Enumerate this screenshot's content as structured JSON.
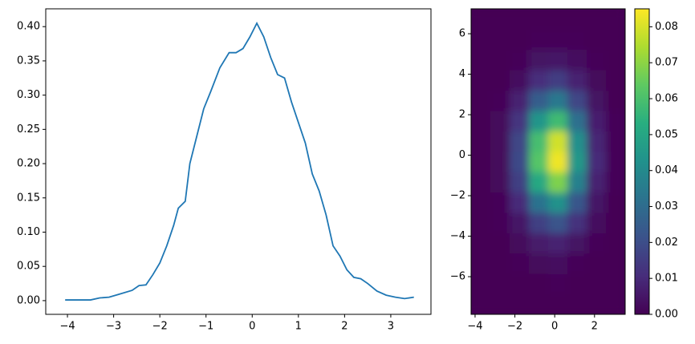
{
  "chart_data": [
    {
      "type": "line",
      "color": "#1f77b4",
      "x": [
        -4.05,
        -3.5,
        -3.3,
        -3.1,
        -2.9,
        -2.6,
        -2.45,
        -2.3,
        -2.15,
        -2.0,
        -1.85,
        -1.7,
        -1.6,
        -1.45,
        -1.35,
        -1.2,
        -1.05,
        -0.9,
        -0.7,
        -0.5,
        -0.35,
        -0.2,
        -0.05,
        0.1,
        0.25,
        0.4,
        0.55,
        0.7,
        0.85,
        1.0,
        1.15,
        1.3,
        1.45,
        1.6,
        1.75,
        1.9,
        2.05,
        2.2,
        2.35,
        2.5,
        2.7,
        2.9,
        3.1,
        3.3,
        3.5
      ],
      "values": [
        0.001,
        0.001,
        0.004,
        0.005,
        0.009,
        0.015,
        0.022,
        0.023,
        0.038,
        0.055,
        0.08,
        0.11,
        0.135,
        0.145,
        0.2,
        0.24,
        0.28,
        0.305,
        0.34,
        0.362,
        0.362,
        0.368,
        0.385,
        0.405,
        0.385,
        0.355,
        0.33,
        0.325,
        0.29,
        0.26,
        0.23,
        0.185,
        0.16,
        0.125,
        0.08,
        0.065,
        0.045,
        0.034,
        0.032,
        0.025,
        0.014,
        0.008,
        0.005,
        0.003,
        0.005
      ],
      "xlim": [
        -4.47,
        3.87
      ],
      "ylim": [
        -0.02,
        0.426
      ],
      "xticks": [
        {
          "value": -4,
          "label": "−4"
        },
        {
          "value": -3,
          "label": "−3"
        },
        {
          "value": -2,
          "label": "−2"
        },
        {
          "value": -1,
          "label": "−1"
        },
        0,
        1,
        2,
        3
      ],
      "yticks": [
        {
          "value": 0,
          "label": "0.00"
        },
        {
          "value": 0.05,
          "label": "0.05"
        },
        {
          "value": 0.1,
          "label": "0.10"
        },
        {
          "value": 0.15,
          "label": "0.15"
        },
        {
          "value": 0.2,
          "label": "0.20"
        },
        {
          "value": 0.25,
          "label": "0.25"
        },
        {
          "value": 0.3,
          "label": "0.30"
        },
        {
          "value": 0.35,
          "label": "0.35"
        },
        {
          "value": 0.4,
          "label": "0.40"
        }
      ]
    },
    {
      "type": "heatmap",
      "colormap": "viridis",
      "xlim": [
        -4.2,
        3.54
      ],
      "ylim": [
        -7.86,
        7.23
      ],
      "z": [
        [
          0,
          0,
          0,
          0,
          0,
          0,
          0,
          0
        ],
        [
          0,
          0,
          0,
          0,
          0.001,
          0,
          0,
          0
        ],
        [
          0,
          0,
          0.001,
          0.002,
          0.003,
          0.001,
          0,
          0
        ],
        [
          0,
          0,
          0.002,
          0.006,
          0.008,
          0.004,
          0.001,
          0
        ],
        [
          0,
          0.001,
          0.005,
          0.016,
          0.022,
          0.012,
          0.003,
          0
        ],
        [
          0,
          0.001,
          0.01,
          0.032,
          0.043,
          0.023,
          0.005,
          0
        ],
        [
          0,
          0.002,
          0.016,
          0.051,
          0.068,
          0.037,
          0.008,
          0.001
        ],
        [
          0,
          0.002,
          0.019,
          0.062,
          0.083,
          0.045,
          0.01,
          0.001
        ],
        [
          0,
          0.002,
          0.018,
          0.059,
          0.079,
          0.042,
          0.009,
          0.001
        ],
        [
          0,
          0.002,
          0.013,
          0.044,
          0.058,
          0.031,
          0.007,
          0.001
        ],
        [
          0,
          0.001,
          0.008,
          0.025,
          0.034,
          0.018,
          0.004,
          0
        ],
        [
          0,
          0,
          0.003,
          0.011,
          0.015,
          0.008,
          0.002,
          0
        ],
        [
          0,
          0,
          0.001,
          0.004,
          0.005,
          0.003,
          0.001,
          0
        ],
        [
          0,
          0,
          0,
          0.001,
          0.001,
          0.001,
          0,
          0
        ],
        [
          0,
          0,
          0,
          0,
          0,
          0,
          0,
          0
        ]
      ],
      "xticks": [
        {
          "value": -4,
          "label": "−4"
        },
        {
          "value": -2,
          "label": "−2"
        },
        0,
        2
      ],
      "yticks": [
        {
          "value": -6,
          "label": "−6"
        },
        {
          "value": -4,
          "label": "−4"
        },
        {
          "value": -2,
          "label": "−2"
        },
        0,
        2,
        4,
        6
      ],
      "colorbar": {
        "lim": [
          0,
          0.085
        ],
        "ticks": [
          {
            "value": 0,
            "label": "0.00"
          },
          {
            "value": 0.01,
            "label": "0.01"
          },
          {
            "value": 0.02,
            "label": "0.02"
          },
          {
            "value": 0.03,
            "label": "0.03"
          },
          {
            "value": 0.04,
            "label": "0.04"
          },
          {
            "value": 0.05,
            "label": "0.05"
          },
          {
            "value": 0.06,
            "label": "0.06"
          },
          {
            "value": 0.07,
            "label": "0.07"
          },
          {
            "value": 0.08,
            "label": "0.08"
          }
        ]
      }
    }
  ]
}
